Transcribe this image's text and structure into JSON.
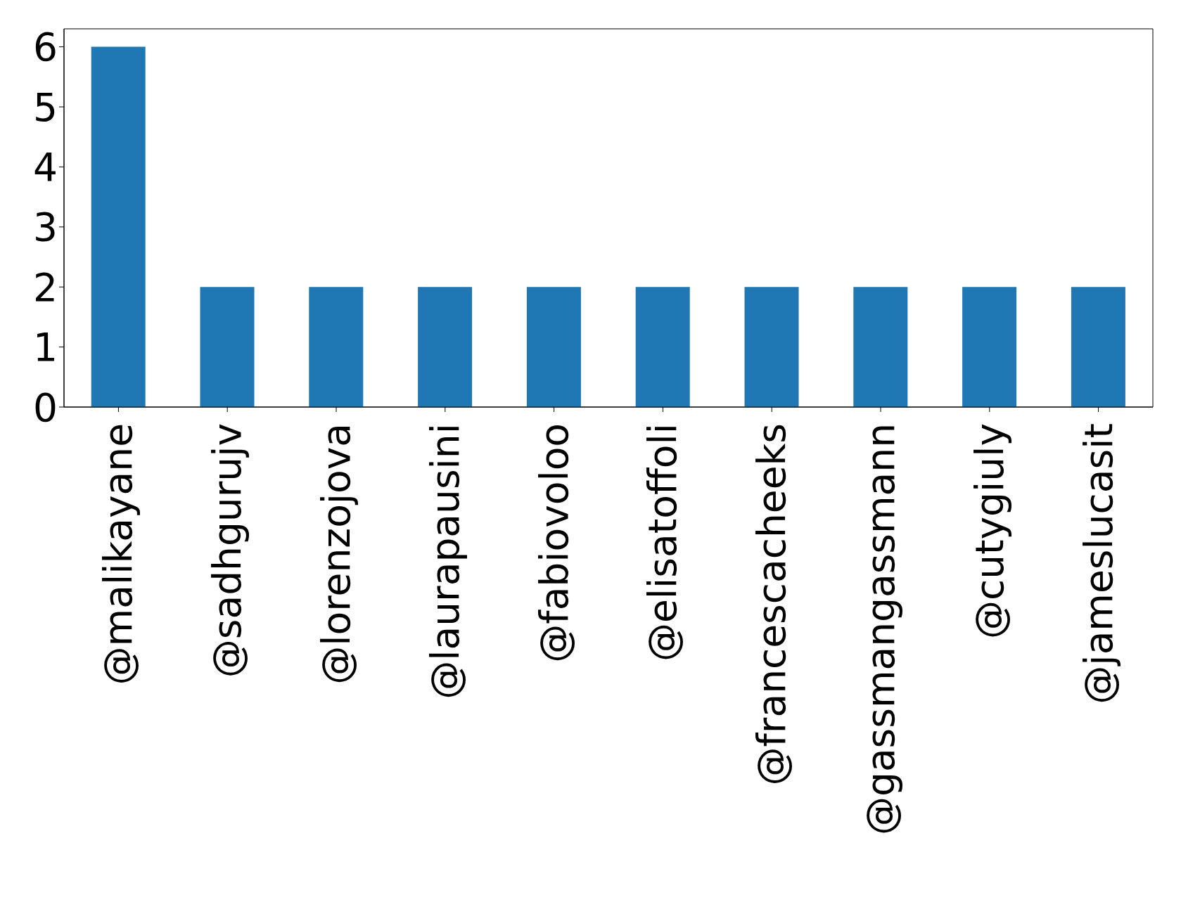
{
  "chart_data": {
    "type": "bar",
    "categories": [
      "@malikayane",
      "@sadhgurujv",
      "@lorenzojova",
      "@laurapausini",
      "@fabiovoloo",
      "@elisatoffoli",
      "@francescacheeks",
      "@gassmangassmann",
      "@cutygiuly",
      "@jameslucasit"
    ],
    "values": [
      6,
      2,
      2,
      2,
      2,
      2,
      2,
      2,
      2,
      2
    ],
    "color": "#1f77b4",
    "ylim": [
      0,
      6.3
    ],
    "yticks": [
      0,
      1,
      2,
      3,
      4,
      5,
      6
    ],
    "grid": false
  }
}
